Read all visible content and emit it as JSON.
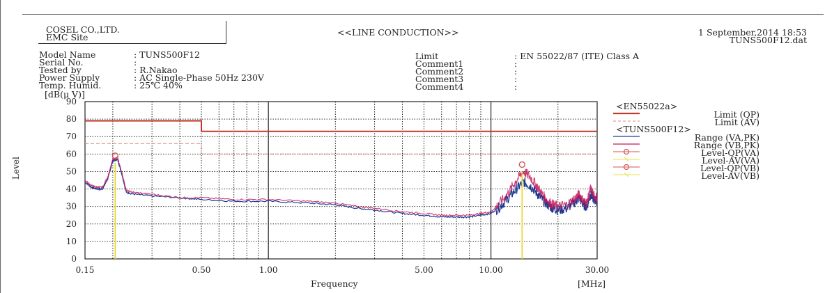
{
  "header": {
    "company": "COSEL CO.,LTD.",
    "site": "EMC Site",
    "title": "<<LINE CONDUCTION>>",
    "datetime": "1 September,2014 18:53",
    "filename": "TUNS500F12.dat"
  },
  "info": {
    "labels": [
      "Model Name",
      "Serial No.",
      "Tested by",
      "Power Supply",
      "Temp. Humid."
    ],
    "values": [
      ": TUNS500F12",
      ":",
      ": R.Nakao",
      ": AC Single-Phase 50Hz 230V",
      ": 25℃ 40%"
    ],
    "right_labels": [
      "Limit",
      "Comment1",
      "Comment2",
      "Comment3",
      "Comment4"
    ],
    "right_values": [
      ": EN 55022/87 (ITE) Class A",
      ":",
      ":",
      ":",
      ":"
    ]
  },
  "legend": {
    "group1": "<EN55022a>",
    "group2": "<TUNS500F12>",
    "items": [
      {
        "label": "Limit (QP)",
        "color": "#c0392b",
        "style": "solid-thick"
      },
      {
        "label": "Limit (AV)",
        "color": "#d98880",
        "style": "dashed"
      },
      {
        "label": "Range (VA,PK)",
        "color": "#1f3a93",
        "style": "solid"
      },
      {
        "label": "Range (VB,PK)",
        "color": "#c2185b",
        "style": "solid"
      },
      {
        "label": "Level-QP(VA)",
        "color": "#d35454",
        "style": "circle"
      },
      {
        "label": "Level-AV(VA)",
        "color": "#e8e04a",
        "style": "cross"
      },
      {
        "label": "Level-QP(VB)",
        "color": "#d35454",
        "style": "circle"
      },
      {
        "label": "Level-AV(VB)",
        "color": "#e8e04a",
        "style": "cross"
      }
    ]
  },
  "chart_data": {
    "type": "line",
    "title": "<<LINE CONDUCTION>>",
    "xlabel": "Frequency",
    "xunit": "[MHz]",
    "ylabel": "Level",
    "yunit": "[dB(μ V)]",
    "xscale": "log",
    "xlim": [
      0.15,
      30
    ],
    "ylim": [
      0,
      90
    ],
    "yticks": [
      0,
      10,
      20,
      30,
      40,
      50,
      60,
      70,
      80,
      90
    ],
    "xtick_labels": [
      {
        "value": 0.15,
        "label": "0.15"
      },
      {
        "value": 0.5,
        "label": "0.50"
      },
      {
        "value": 1,
        "label": "1.00"
      },
      {
        "value": 5,
        "label": "5.00"
      },
      {
        "value": 10,
        "label": "10.00"
      },
      {
        "value": 30,
        "label": "30.00"
      }
    ],
    "grid": true,
    "legend_position": "right",
    "limits": [
      {
        "name": "Limit (QP)",
        "points": [
          [
            0.15,
            79
          ],
          [
            0.5,
            79
          ],
          [
            0.5,
            73
          ],
          [
            30,
            73
          ]
        ]
      },
      {
        "name": "Limit (AV)",
        "points": [
          [
            0.15,
            66
          ],
          [
            0.5,
            66
          ],
          [
            0.5,
            60
          ],
          [
            30,
            60
          ]
        ]
      }
    ],
    "series": [
      {
        "name": "Range (VA,PK)",
        "color": "#1f3a93",
        "points": [
          [
            0.15,
            44
          ],
          [
            0.16,
            41
          ],
          [
            0.17,
            40
          ],
          [
            0.18,
            40
          ],
          [
            0.19,
            46
          ],
          [
            0.2,
            56
          ],
          [
            0.21,
            57
          ],
          [
            0.22,
            48
          ],
          [
            0.23,
            38
          ],
          [
            0.25,
            37
          ],
          [
            0.3,
            36
          ],
          [
            0.4,
            35
          ],
          [
            0.5,
            34
          ],
          [
            0.7,
            33
          ],
          [
            1.0,
            33
          ],
          [
            1.5,
            32
          ],
          [
            2.0,
            31
          ],
          [
            2.5,
            29
          ],
          [
            3.0,
            28
          ],
          [
            4.0,
            26
          ],
          [
            5.0,
            25
          ],
          [
            6.0,
            24
          ],
          [
            7.0,
            24
          ],
          [
            8.0,
            24
          ],
          [
            9.0,
            25
          ],
          [
            10.0,
            26
          ],
          [
            11.0,
            30
          ],
          [
            12.0,
            35
          ],
          [
            13.0,
            40
          ],
          [
            14.0,
            44
          ],
          [
            15.0,
            42
          ],
          [
            16.0,
            38
          ],
          [
            17.0,
            34
          ],
          [
            18.0,
            31
          ],
          [
            19.0,
            29
          ],
          [
            20.0,
            28
          ],
          [
            22.0,
            29
          ],
          [
            24.0,
            33
          ],
          [
            25.0,
            35
          ],
          [
            26.0,
            31
          ],
          [
            27.0,
            30
          ],
          [
            28.0,
            37
          ],
          [
            29.0,
            34
          ],
          [
            30.0,
            33
          ]
        ]
      },
      {
        "name": "Range (VB,PK)",
        "color": "#c2185b",
        "points": [
          [
            0.15,
            45
          ],
          [
            0.16,
            42
          ],
          [
            0.17,
            41
          ],
          [
            0.18,
            41
          ],
          [
            0.19,
            47
          ],
          [
            0.2,
            57
          ],
          [
            0.21,
            58
          ],
          [
            0.22,
            49
          ],
          [
            0.23,
            39
          ],
          [
            0.25,
            38
          ],
          [
            0.3,
            37
          ],
          [
            0.4,
            35
          ],
          [
            0.5,
            35
          ],
          [
            0.7,
            34
          ],
          [
            1.0,
            34
          ],
          [
            1.5,
            33
          ],
          [
            2.0,
            32
          ],
          [
            2.5,
            30
          ],
          [
            3.0,
            29
          ],
          [
            4.0,
            27
          ],
          [
            5.0,
            26
          ],
          [
            6.0,
            25
          ],
          [
            7.0,
            25
          ],
          [
            8.0,
            25
          ],
          [
            9.0,
            26
          ],
          [
            10.0,
            27
          ],
          [
            11.0,
            32
          ],
          [
            12.0,
            38
          ],
          [
            13.0,
            45
          ],
          [
            14.0,
            50
          ],
          [
            15.0,
            47
          ],
          [
            16.0,
            42
          ],
          [
            17.0,
            37
          ],
          [
            18.0,
            33
          ],
          [
            19.0,
            31
          ],
          [
            20.0,
            30
          ],
          [
            22.0,
            31
          ],
          [
            24.0,
            35
          ],
          [
            25.0,
            37
          ],
          [
            26.0,
            33
          ],
          [
            27.0,
            32
          ],
          [
            28.0,
            40
          ],
          [
            29.0,
            36
          ],
          [
            30.0,
            35
          ]
        ]
      }
    ],
    "markers": [
      {
        "name": "Level-QP(VA)",
        "x": 0.205,
        "y": 59
      },
      {
        "name": "Level-AV(VA)",
        "x": 0.205,
        "y": 55
      },
      {
        "name": "Level-QP(VB)",
        "x": 13.8,
        "y": 54
      },
      {
        "name": "Level-AV(VB)",
        "x": 13.8,
        "y": 50
      }
    ]
  }
}
